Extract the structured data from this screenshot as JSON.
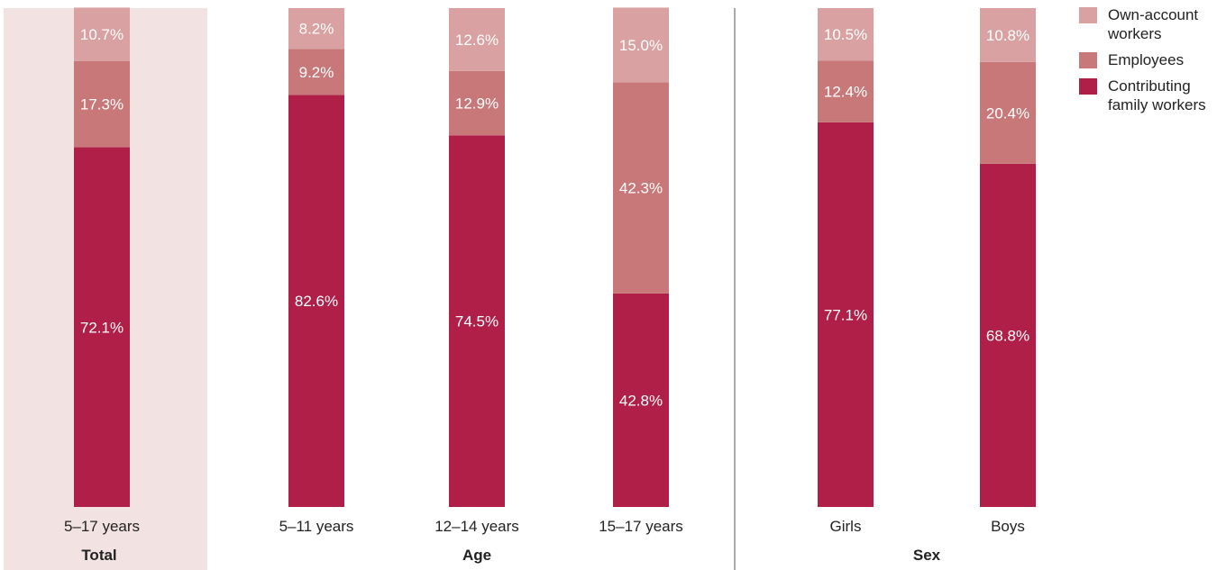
{
  "chart_data": {
    "type": "bar",
    "stacked": true,
    "orientation": "vertical",
    "value_unit": "%",
    "categories": [
      "5–17 years",
      "5–11 years",
      "12–14 years",
      "15–17 years",
      "Girls",
      "Boys"
    ],
    "groups": [
      {
        "label": "Total",
        "categories": [
          "5–17 years"
        ],
        "highlighted": true
      },
      {
        "label": "Age",
        "categories": [
          "5–11 years",
          "12–14 years",
          "15–17 years"
        ]
      },
      {
        "label": "Sex",
        "categories": [
          "Girls",
          "Boys"
        ]
      }
    ],
    "series": [
      {
        "name": "Contributing family workers",
        "color": "#b01f48",
        "values": [
          72.1,
          82.6,
          74.5,
          42.8,
          77.1,
          68.8
        ]
      },
      {
        "name": "Employees",
        "color": "#c87878",
        "values": [
          17.3,
          9.2,
          12.9,
          42.3,
          12.4,
          20.4
        ]
      },
      {
        "name": "Own-account workers",
        "color": "#d9a1a1",
        "values": [
          10.7,
          8.2,
          12.6,
          15.0,
          10.5,
          10.8
        ]
      }
    ],
    "legend": {
      "placement": "top-right",
      "entries": [
        "Own-account workers",
        "Employees",
        "Contributing family workers"
      ]
    },
    "ylim": [
      0,
      100
    ],
    "grid": false,
    "colors": {
      "highlight_background": "#f3e2e2",
      "separator": "#555555",
      "label_text": "#ffffff"
    }
  }
}
